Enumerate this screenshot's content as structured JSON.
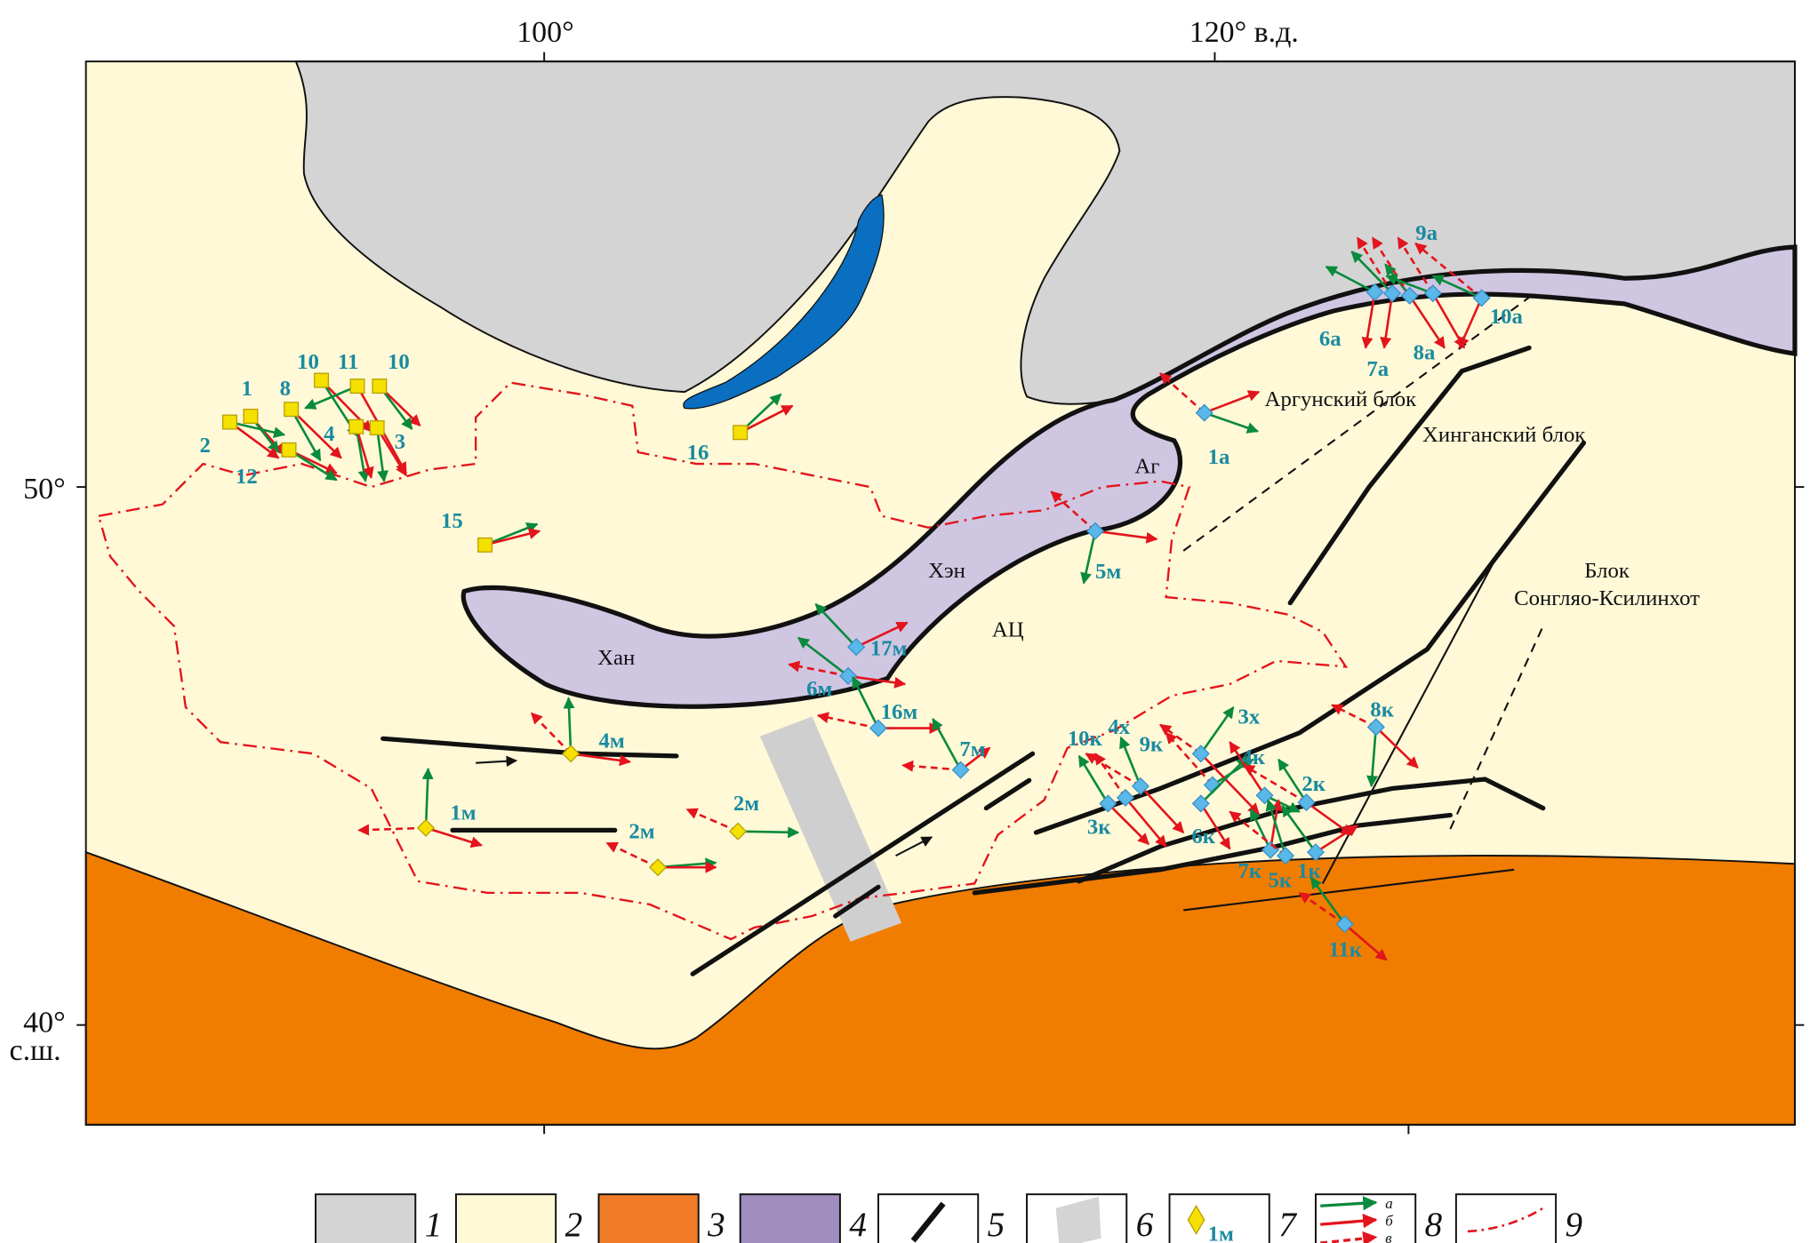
{
  "axes": {
    "lon_100": "100°",
    "lon_120": "120° в.д.",
    "lat_50": "50°",
    "lat_40": "40°",
    "lat_unit": "с.ш."
  },
  "colors": {
    "craton_gray": "#d4d4d4",
    "fold_belt_yellow": "#fff9d7",
    "orange": "#f07c00",
    "purple": "#cfc6e2",
    "lake_blue": "#0a6fc0",
    "vector_green": "#0a8a3c",
    "vector_red": "#e3141c",
    "site_label": "#1a8aa0",
    "boundary_red": "#e3141c"
  },
  "regions": {
    "khan": "Хан",
    "khen": "Хэн",
    "ats": "АЦ",
    "ag": "Аг",
    "argun": "Аргунский блок",
    "khingan": "Хинганский блок",
    "songliao_1": "Блок",
    "songliao_2": "Сонгляо-Ксилинхот"
  },
  "sites": [
    {
      "label": "1",
      "marker": "square"
    },
    {
      "label": "2",
      "marker": "square"
    },
    {
      "label": "12",
      "marker": "square"
    },
    {
      "label": "8",
      "marker": "square"
    },
    {
      "label": "10",
      "marker": "square"
    },
    {
      "label": "11",
      "marker": "square"
    },
    {
      "label": "10",
      "marker": "square"
    },
    {
      "label": "4",
      "marker": "square"
    },
    {
      "label": "3",
      "marker": "square"
    },
    {
      "label": "15",
      "marker": "square"
    },
    {
      "label": "16",
      "marker": "square"
    },
    {
      "label": "4м",
      "marker": "yellow-diamond"
    },
    {
      "label": "1м",
      "marker": "yellow-diamond"
    },
    {
      "label": "2м",
      "marker": "yellow-diamond"
    },
    {
      "label": "2м",
      "marker": "yellow-diamond"
    },
    {
      "label": "17м",
      "marker": "blue-diamond"
    },
    {
      "label": "6м",
      "marker": "blue-diamond"
    },
    {
      "label": "16м",
      "marker": "blue-diamond"
    },
    {
      "label": "7м",
      "marker": "blue-diamond"
    },
    {
      "label": "5м",
      "marker": "blue-diamond"
    },
    {
      "label": "1а",
      "marker": "blue-diamond"
    },
    {
      "label": "6а",
      "marker": "blue-diamond"
    },
    {
      "label": "7а",
      "marker": "blue-diamond"
    },
    {
      "label": "8а",
      "marker": "blue-diamond"
    },
    {
      "label": "9а",
      "marker": "blue-diamond"
    },
    {
      "label": "10а",
      "marker": "blue-diamond"
    },
    {
      "label": "3к",
      "marker": "blue-diamond"
    },
    {
      "label": "10к",
      "marker": "blue-diamond"
    },
    {
      "label": "4х",
      "marker": "blue-diamond"
    },
    {
      "label": "9к",
      "marker": "blue-diamond"
    },
    {
      "label": "3х",
      "marker": "blue-diamond"
    },
    {
      "label": "6к",
      "marker": "blue-diamond"
    },
    {
      "label": "4к",
      "marker": "blue-diamond"
    },
    {
      "label": "7к",
      "marker": "blue-diamond"
    },
    {
      "label": "5к",
      "marker": "blue-diamond"
    },
    {
      "label": "1к",
      "marker": "blue-diamond"
    },
    {
      "label": "2к",
      "marker": "blue-diamond"
    },
    {
      "label": "8к",
      "marker": "blue-diamond"
    },
    {
      "label": "11к",
      "marker": "blue-diamond"
    }
  ],
  "legend": {
    "items": [
      {
        "number": "1",
        "symbol": "gray-fill"
      },
      {
        "number": "2",
        "symbol": "yellow-fill"
      },
      {
        "number": "3",
        "symbol": "orange-fill"
      },
      {
        "number": "4",
        "symbol": "purple-fill"
      },
      {
        "number": "5",
        "symbol": "fault-line"
      },
      {
        "number": "6",
        "symbol": "gray-band"
      },
      {
        "number": "7",
        "symbol": "site-diamond"
      },
      {
        "number": "8",
        "symbol": "vector-arrows"
      },
      {
        "number": "9",
        "symbol": "dash-dot-boundary"
      }
    ],
    "site_example": "1м",
    "arrow_a": "а",
    "arrow_b": "б",
    "arrow_v": "в"
  }
}
